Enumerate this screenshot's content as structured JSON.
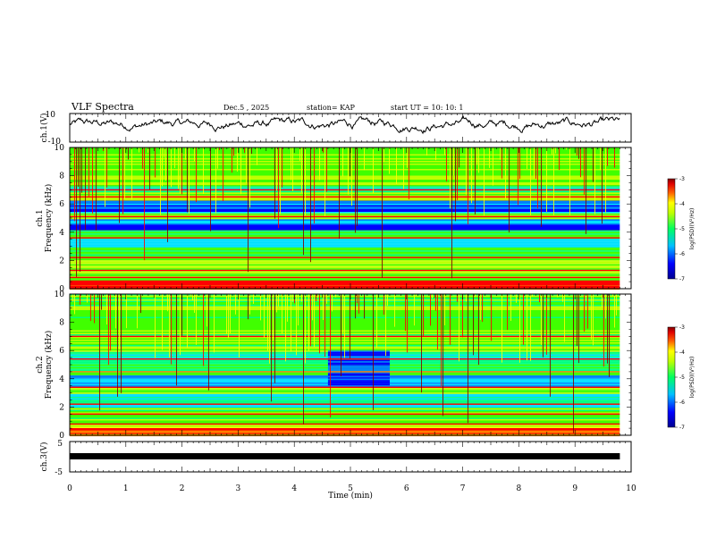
{
  "header": {
    "title": "VLF Spectra",
    "date": "Dec.5 , 2025",
    "station": "station= KAP",
    "start": "start  UT  =   10: 10: 1"
  },
  "colors": {
    "background": "#ffffff",
    "axis": "#000000",
    "trace": "#000000",
    "colormap": [
      "#000090",
      "#0000ff",
      "#0080ff",
      "#00e0ff",
      "#00ff80",
      "#40ff00",
      "#c0ff00",
      "#ffff00",
      "#ff8000",
      "#ff0000",
      "#c00000",
      "#800000"
    ]
  },
  "chart_data": [
    {
      "type": "line",
      "name": "ch1-waveform",
      "ylabel": "ch.1(V)",
      "yticklabels": [
        "10",
        "-10"
      ],
      "ylim": [
        -10,
        10
      ],
      "x_range_min": [
        0,
        9.8
      ],
      "baseline": 2.5,
      "amplitude": 3.5
    },
    {
      "type": "heatmap",
      "name": "ch1-spectrogram",
      "ylabel": "Frequency  (kHz)",
      "channel": "ch.1",
      "ylim": [
        0,
        10
      ],
      "yticklabels": [
        "0",
        "2",
        "4",
        "6",
        "8",
        "10"
      ],
      "x_range_min": [
        0,
        9.8
      ],
      "colorbar": {
        "label": "log(PSD)(V²/Hz)",
        "range": [
          -7,
          -3
        ],
        "ticklabels": [
          "-3",
          "-4",
          "-5",
          "-6",
          "-7"
        ]
      },
      "bands_khz": [
        {
          "from": 0.0,
          "to": 0.6,
          "level": 0.75
        },
        {
          "from": 0.6,
          "to": 2.2,
          "level": 0.5
        },
        {
          "from": 2.2,
          "to": 3.0,
          "level": 0.42
        },
        {
          "from": 3.0,
          "to": 3.6,
          "level": 0.28
        },
        {
          "from": 3.6,
          "to": 4.2,
          "level": 0.42
        },
        {
          "from": 4.2,
          "to": 5.0,
          "level": 0.2
        },
        {
          "from": 5.0,
          "to": 5.4,
          "level": 0.48
        },
        {
          "from": 5.4,
          "to": 6.3,
          "level": 0.2
        },
        {
          "from": 6.3,
          "to": 6.9,
          "level": 0.5
        },
        {
          "from": 6.9,
          "to": 7.3,
          "level": 0.3
        },
        {
          "from": 7.3,
          "to": 10.0,
          "level": 0.5
        }
      ],
      "lines_khz": [
        0.3,
        0.8,
        1.3,
        2.2,
        3.6,
        5.1,
        6.5,
        7.0
      ]
    },
    {
      "type": "heatmap",
      "name": "ch2-spectrogram",
      "ylabel": "Frequency  (kHz)",
      "channel": "ch.2",
      "ylim": [
        0,
        10
      ],
      "yticklabels": [
        "0",
        "2",
        "4",
        "6",
        "8",
        "10"
      ],
      "x_range_min": [
        0,
        9.8
      ],
      "colorbar": {
        "label": "log(PSD)(V²/Hz)",
        "range": [
          -7,
          -3
        ],
        "ticklabels": [
          "-3",
          "-4",
          "-5",
          "-6",
          "-7"
        ]
      },
      "bands_khz": [
        {
          "from": 0.0,
          "to": 0.6,
          "level": 0.72
        },
        {
          "from": 0.6,
          "to": 2.0,
          "level": 0.46
        },
        {
          "from": 2.0,
          "to": 3.0,
          "level": 0.32
        },
        {
          "from": 3.0,
          "to": 3.5,
          "level": 0.46
        },
        {
          "from": 3.5,
          "to": 4.3,
          "level": 0.24
        },
        {
          "from": 4.3,
          "to": 5.3,
          "level": 0.42
        },
        {
          "from": 5.3,
          "to": 6.0,
          "level": 0.34
        },
        {
          "from": 6.0,
          "to": 10.0,
          "level": 0.48
        }
      ],
      "lines_khz": [
        0.3,
        0.8,
        1.5,
        2.2,
        3.4,
        4.5,
        5.4,
        7.0
      ],
      "quiet_block": {
        "t_from": 4.6,
        "t_to": 5.7,
        "f_from": 3.5,
        "f_to": 6.0
      }
    },
    {
      "type": "line",
      "name": "ch3-waveform",
      "ylabel": "ch.3(V)",
      "yticklabels": [
        "5",
        "-5"
      ],
      "ylim": [
        -5,
        5
      ],
      "x_range_min": [
        0,
        9.8
      ],
      "baseline": 0
    }
  ],
  "xaxis": {
    "label": "Time  (min)",
    "range": [
      0,
      10
    ],
    "ticklabels": [
      "0",
      "1",
      "2",
      "3",
      "4",
      "5",
      "6",
      "7",
      "8",
      "9",
      "10"
    ]
  }
}
